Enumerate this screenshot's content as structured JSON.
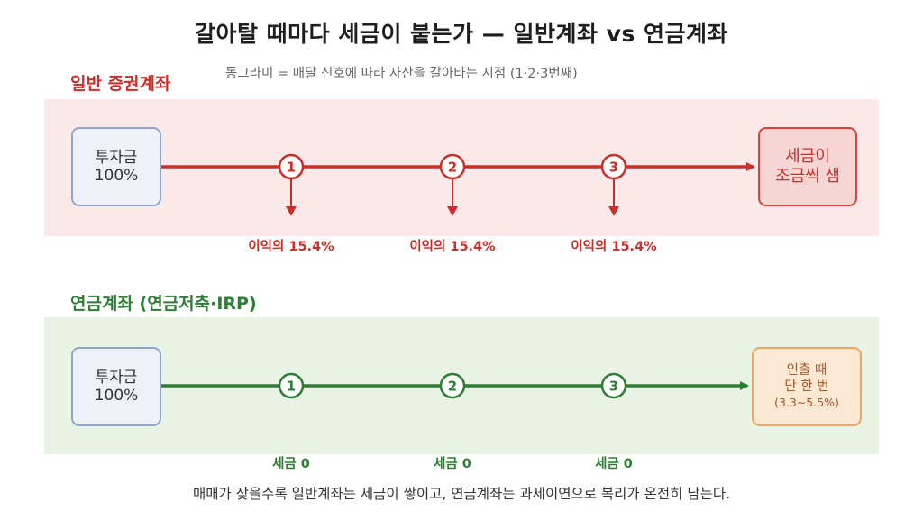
{
  "title": "갈아탈 때마다 세금이 붙는가 — 일반계좌 vs 연금계좌",
  "legend_note": "동그라미 = 매달 신호에 따라 자산을 갈아타는 시점 (1·2·3번째)",
  "general": {
    "label": "일반 증권계좌",
    "start_line1": "투자금",
    "start_line2": "100%",
    "end_line1": "세금이",
    "end_line2": "조금씩 샘",
    "markers": [
      "1",
      "2",
      "3"
    ],
    "tax_notes": [
      "이익의 15.4%",
      "이익의 15.4%",
      "이익의 15.4%"
    ],
    "color": "#c8302a"
  },
  "pension": {
    "label": "연금계좌 (연금저축·IRP)",
    "start_line1": "투자금",
    "start_line2": "100%",
    "end_line1": "인출 때",
    "end_line2": "단 한 번",
    "end_line3": "(3.3~5.5%)",
    "markers": [
      "1",
      "2",
      "3"
    ],
    "tax_notes": [
      "세금 0",
      "세금 0",
      "세금 0"
    ],
    "color": "#2d7d33"
  },
  "caption": "매매가 잦을수록 일반계좌는 세금이 쌓이고, 연금계좌는 과세이연으로 복리가 온전히 남는다."
}
